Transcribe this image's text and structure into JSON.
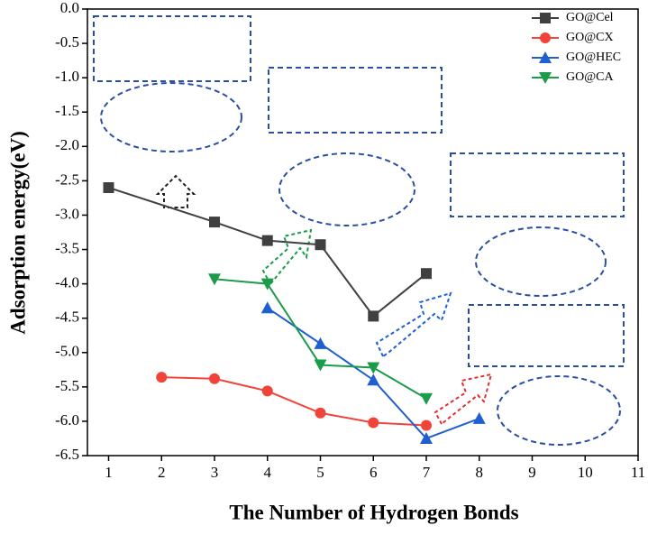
{
  "chart_data": {
    "type": "line",
    "x_label": "The Number of Hydrogen Bonds",
    "y_label": "Adsorption energy(eV)",
    "xlim": [
      0.6,
      11
    ],
    "xticks": [
      1,
      2,
      3,
      4,
      5,
      6,
      7,
      8,
      9,
      10,
      11
    ],
    "ylim": [
      -6.5,
      0
    ],
    "yticks": [
      {
        "value": -6.5,
        "label": "-6.5"
      },
      {
        "value": -6,
        "label": "-6.0"
      },
      {
        "value": -5.5,
        "label": "-5.5"
      },
      {
        "value": -5,
        "label": "-5.0"
      },
      {
        "value": -4.5,
        "label": "-4.5"
      },
      {
        "value": -4,
        "label": "-4.0"
      },
      {
        "value": -3.5,
        "label": "-3.5"
      },
      {
        "value": -3,
        "label": "-3.0"
      },
      {
        "value": -2.5,
        "label": "-2.5"
      },
      {
        "value": -2,
        "label": "-2.0"
      },
      {
        "value": -1.5,
        "label": "-1.5"
      },
      {
        "value": -1,
        "label": "-1.0"
      },
      {
        "value": -0.5,
        "label": "-0.5"
      },
      {
        "value": 0,
        "label": "0.0"
      }
    ],
    "legend": "upper right",
    "series": [
      {
        "name": "GO@Cel",
        "color": "#404040",
        "marker": "square",
        "x": [
          1,
          3,
          4,
          5,
          6,
          7
        ],
        "values": [
          -2.6,
          -3.1,
          -3.37,
          -3.43,
          -4.47,
          -3.85
        ]
      },
      {
        "name": "GO@CX",
        "color": "#f0443a",
        "marker": "circle",
        "x": [
          2,
          3,
          4,
          5,
          6,
          7
        ],
        "values": [
          -5.36,
          -5.38,
          -5.56,
          -5.88,
          -6.02,
          -6.06
        ]
      },
      {
        "name": "GO@HEC",
        "color": "#1f5fd0",
        "marker": "triangle-up",
        "x": [
          4,
          5,
          6,
          7,
          8
        ],
        "values": [
          -4.35,
          -4.87,
          -5.4,
          -6.25,
          -5.96
        ]
      },
      {
        "name": "GO@CA",
        "color": "#1a9c4a",
        "marker": "triangle-down",
        "x": [
          3,
          4,
          5,
          6,
          7
        ],
        "values": [
          -3.93,
          -4.0,
          -5.18,
          -5.22,
          -5.67
        ]
      }
    ]
  }
}
